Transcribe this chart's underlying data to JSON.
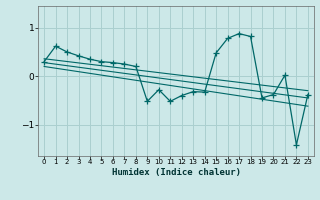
{
  "xlabel": "Humidex (Indice chaleur)",
  "bg_color": "#cce8e8",
  "grid_color": "#aacfcf",
  "line_color": "#006868",
  "xlim": [
    -0.5,
    23.5
  ],
  "ylim": [
    -1.65,
    1.45
  ],
  "yticks": [
    -1,
    0,
    1
  ],
  "xticks": [
    0,
    1,
    2,
    3,
    4,
    5,
    6,
    7,
    8,
    9,
    10,
    11,
    12,
    13,
    14,
    15,
    16,
    17,
    18,
    19,
    20,
    21,
    22,
    23
  ],
  "series1_x": [
    0,
    1,
    2,
    3,
    4,
    5,
    6,
    7,
    8,
    9,
    10,
    11,
    12,
    13,
    14,
    15,
    16,
    17,
    18,
    19,
    20,
    21,
    22,
    23
  ],
  "series1_y": [
    0.3,
    0.62,
    0.5,
    0.42,
    0.35,
    0.3,
    0.28,
    0.25,
    0.2,
    -0.52,
    -0.28,
    -0.52,
    -0.4,
    -0.32,
    -0.33,
    0.48,
    0.78,
    0.88,
    0.82,
    -0.45,
    -0.38,
    0.02,
    -1.42,
    -0.38
  ],
  "trend_lines": [
    {
      "x": [
        0,
        23
      ],
      "y": [
        0.36,
        -0.3
      ]
    },
    {
      "x": [
        0,
        23
      ],
      "y": [
        0.28,
        -0.45
      ]
    },
    {
      "x": [
        0,
        23
      ],
      "y": [
        0.2,
        -0.62
      ]
    }
  ]
}
